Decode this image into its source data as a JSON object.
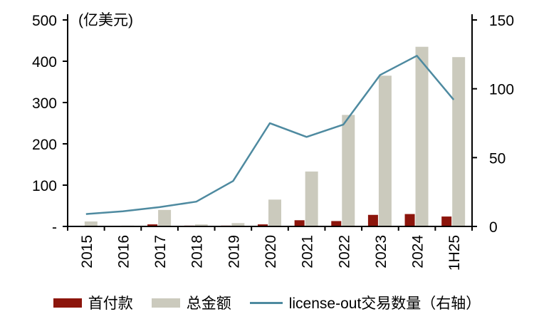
{
  "chart_data": {
    "type": "bar",
    "title": "",
    "unit_label": "(亿美元)",
    "categories": [
      "2015",
      "2016",
      "2017",
      "2018",
      "2019",
      "2020",
      "2021",
      "2022",
      "2023",
      "2024",
      "1H25"
    ],
    "bar_series": [
      {
        "name": "首付款",
        "color": "#8C150C",
        "axis": "left",
        "values": [
          1,
          0,
          5,
          2,
          2,
          5,
          15,
          13,
          28,
          30,
          24
        ]
      },
      {
        "name": "总金额",
        "color": "#CBCABD",
        "axis": "left",
        "values": [
          12,
          2,
          40,
          5,
          8,
          65,
          133,
          270,
          365,
          435,
          410
        ]
      }
    ],
    "line_series": [
      {
        "name": "license-out交易数量（右轴）",
        "color": "#4E8AA0",
        "axis": "right",
        "values": [
          9,
          11,
          14,
          18,
          33,
          75,
          65,
          74,
          110,
          124,
          92
        ]
      }
    ],
    "left_axis": {
      "min": 0,
      "max": 500,
      "ticks": [
        "500",
        "400",
        "300",
        "200",
        "100",
        "-"
      ],
      "tick_values": [
        500,
        400,
        300,
        200,
        100,
        0
      ]
    },
    "right_axis": {
      "min": 0,
      "max": 150,
      "ticks": [
        "150",
        "100",
        "50",
        "0"
      ],
      "tick_values": [
        150,
        100,
        50,
        0
      ]
    },
    "legend_position": "bottom",
    "grid": "off"
  }
}
